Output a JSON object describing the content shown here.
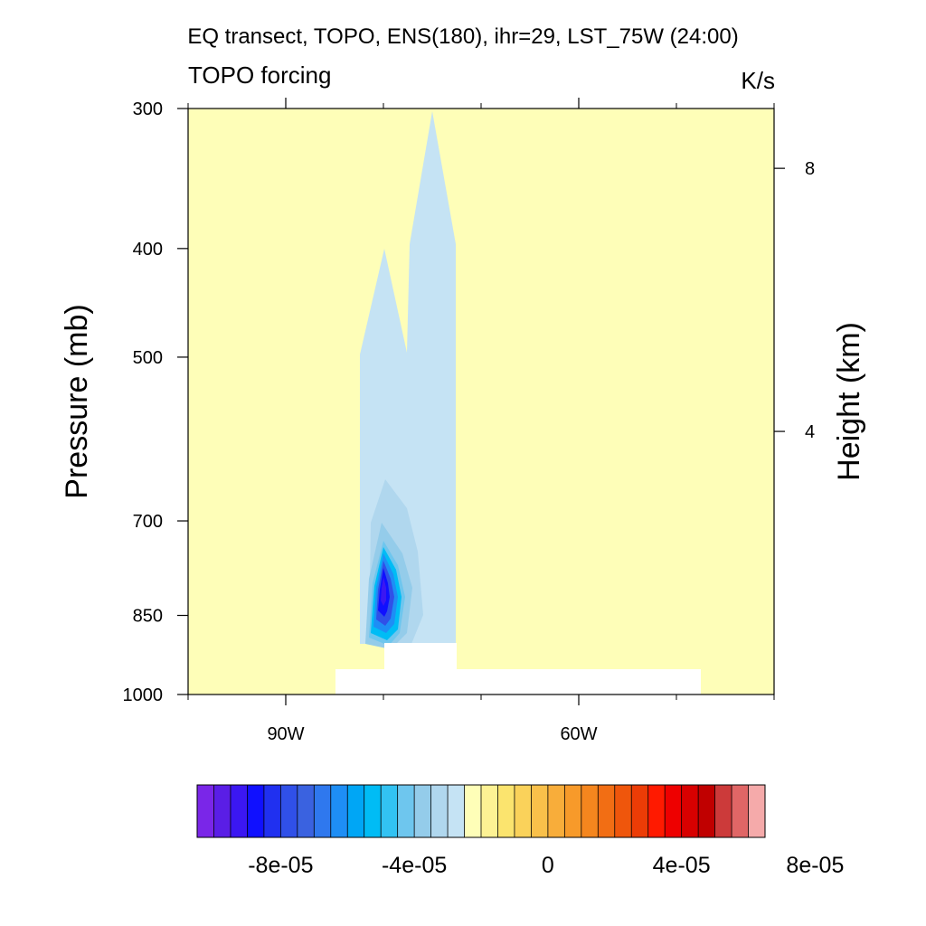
{
  "chart_data": {
    "type": "heatmap",
    "title": "EQ transect, TOPO, ENS(180), ihr=29, LST_75W (24:00)",
    "subtitle_left": "TOPO forcing",
    "subtitle_right": "K/s",
    "ylabel": "Pressure (mb)",
    "ylabel_right": "Height (km)",
    "xlabel": "",
    "xlim_deg_west": [
      100,
      40
    ],
    "ylim_mb": [
      1000,
      300
    ],
    "y_log_scale": true,
    "x_ticks": [
      {
        "value": 90,
        "label": "90W"
      },
      {
        "value": 60,
        "label": "60W"
      }
    ],
    "x_minor_ticks": [
      100,
      80,
      70,
      50,
      40
    ],
    "y_ticks": [
      {
        "value": 300,
        "label": "300"
      },
      {
        "value": 400,
        "label": "400"
      },
      {
        "value": 500,
        "label": "500"
      },
      {
        "value": 700,
        "label": "700"
      },
      {
        "value": 850,
        "label": "850"
      },
      {
        "value": 1000,
        "label": "1000"
      }
    ],
    "y_right_ticks": [
      {
        "value_km": 8,
        "label": "8"
      },
      {
        "value_km": 4,
        "label": "4"
      }
    ],
    "background_value": "0 to 5e-06",
    "colorbar": {
      "min": -0.0001,
      "max": 0.0001,
      "step": 5e-06,
      "colors": [
        "#7a26e8",
        "#5a1ee6",
        "#3b17f2",
        "#1010ff",
        "#2030f0",
        "#3050e8",
        "#3a62e0",
        "#2f78ee",
        "#1e8ef5",
        "#00a6f5",
        "#00bcf5",
        "#32c2f2",
        "#6ec6ee",
        "#94ccea",
        "#b0d7ee",
        "#c5e3f4",
        "#fefeb8",
        "#fdf294",
        "#fbe46e",
        "#fad25a",
        "#f9c04a",
        "#f8ad3a",
        "#f79a2a",
        "#f5861e",
        "#f26e14",
        "#ef560c",
        "#ec3c06",
        "#ff1a00",
        "#ee0000",
        "#d80000",
        "#c00000",
        "#cc3a3a",
        "#e06666",
        "#f5aaaa"
      ],
      "tick_labels": [
        {
          "value": -8e-05,
          "label": "-8e-05"
        },
        {
          "value": -4e-05,
          "label": "-4e-05"
        },
        {
          "value": 0,
          "label": "0"
        },
        {
          "value": 4e-05,
          "label": "4e-05"
        },
        {
          "value": 8e-05,
          "label": "8e-05"
        }
      ]
    },
    "cooling_region": {
      "extent_lon_w": [
        87,
        78
      ],
      "top_mb": 300,
      "min_value": -9e-05,
      "min_location": {
        "lon_w": 83,
        "p_mb": 810
      }
    },
    "missing_terrain_regions": [
      {
        "lon_w": [
          85,
          78
        ],
        "p_mb": [
          900,
          1000
        ]
      },
      {
        "lon_w": [
          89,
          52
        ],
        "p_mb": [
          950,
          1000
        ]
      }
    ]
  }
}
